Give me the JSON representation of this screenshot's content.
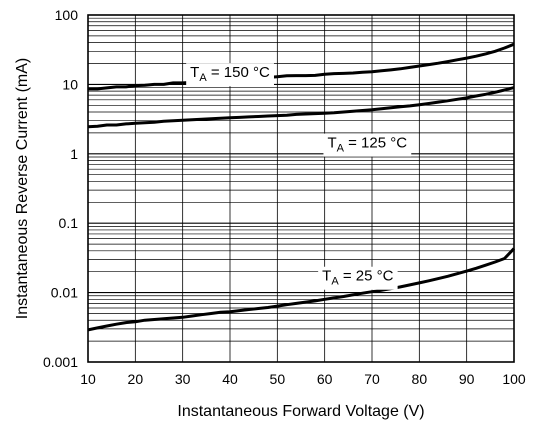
{
  "chart_data": {
    "type": "line",
    "title": "",
    "xlabel": "Instantaneous Forward Voltage (V)",
    "ylabel": "Instantaneous Reverse Current (mA)",
    "xlim": [
      10,
      100
    ],
    "ylim": [
      0.001,
      100
    ],
    "yscale": "log",
    "grid": true,
    "x_ticks": [
      10,
      20,
      30,
      40,
      50,
      60,
      70,
      80,
      90,
      100
    ],
    "x_tick_labels": [
      "10",
      "20",
      "30",
      "40",
      "50",
      "60",
      "70",
      "80",
      "90",
      "100"
    ],
    "y_ticks": [
      0.001,
      0.01,
      0.1,
      1,
      10,
      100
    ],
    "y_tick_labels": [
      "0.001",
      "0.01",
      "0.1",
      "1",
      "10",
      "100"
    ],
    "series": [
      {
        "name": "TA = 150 °C",
        "label_main": "T",
        "label_sub": "A",
        "label_rest": " = 150 °C",
        "x": [
          10,
          12,
          14,
          16,
          18,
          20,
          22,
          24,
          26,
          28,
          30,
          32,
          34,
          36,
          38,
          40,
          42,
          44,
          46,
          48,
          50,
          52,
          54,
          56,
          58,
          60,
          62,
          64,
          66,
          68,
          70,
          72,
          74,
          76,
          78,
          80,
          82,
          84,
          86,
          88,
          90,
          92,
          94,
          96,
          98,
          100
        ],
        "y": [
          8.6,
          8.6,
          8.9,
          9.2,
          9.2,
          9.6,
          9.7,
          10.0,
          10.0,
          10.5,
          10.5,
          10.7,
          10.9,
          11.1,
          11.4,
          11.6,
          11.8,
          12.1,
          12.3,
          12.6,
          12.9,
          13.3,
          13.4,
          13.4,
          13.5,
          14.0,
          14.3,
          14.4,
          14.6,
          15.0,
          15.2,
          15.7,
          16.2,
          16.8,
          17.6,
          18.4,
          19.3,
          20.2,
          21.3,
          22.6,
          23.9,
          25.5,
          27.5,
          30.0,
          33.5,
          38.0
        ]
      },
      {
        "name": "TA = 125 °C",
        "label_main": "T",
        "label_sub": "A",
        "label_rest": " = 125 °C",
        "x": [
          10,
          12,
          14,
          16,
          18,
          20,
          22,
          24,
          26,
          28,
          30,
          32,
          34,
          36,
          38,
          40,
          42,
          44,
          46,
          48,
          50,
          52,
          54,
          56,
          58,
          60,
          62,
          64,
          66,
          68,
          70,
          72,
          74,
          76,
          78,
          80,
          82,
          84,
          86,
          88,
          90,
          92,
          94,
          96,
          98,
          100
        ],
        "y": [
          2.45,
          2.5,
          2.6,
          2.6,
          2.7,
          2.75,
          2.8,
          2.85,
          2.95,
          3.0,
          3.05,
          3.1,
          3.15,
          3.2,
          3.25,
          3.3,
          3.35,
          3.4,
          3.45,
          3.5,
          3.55,
          3.6,
          3.7,
          3.75,
          3.8,
          3.85,
          3.9,
          4.0,
          4.1,
          4.2,
          4.3,
          4.45,
          4.6,
          4.75,
          4.9,
          5.1,
          5.3,
          5.55,
          5.8,
          6.1,
          6.4,
          6.8,
          7.2,
          7.7,
          8.3,
          9.0
        ]
      },
      {
        "name": "TA = 25 °C",
        "label_main": "T",
        "label_sub": "A",
        "label_rest": " = 25 °C",
        "x": [
          10,
          12,
          14,
          16,
          18,
          20,
          22,
          24,
          26,
          28,
          30,
          32,
          34,
          36,
          38,
          40,
          42,
          44,
          46,
          48,
          50,
          52,
          54,
          56,
          58,
          60,
          62,
          64,
          66,
          68,
          70,
          72,
          74,
          76,
          78,
          80,
          82,
          84,
          86,
          88,
          90,
          92,
          94,
          96,
          98,
          100
        ],
        "y": [
          0.0029,
          0.0031,
          0.0033,
          0.0035,
          0.0037,
          0.0038,
          0.004,
          0.0041,
          0.0042,
          0.0043,
          0.0044,
          0.0046,
          0.0048,
          0.005,
          0.0052,
          0.0053,
          0.0055,
          0.0057,
          0.0059,
          0.0061,
          0.0064,
          0.0067,
          0.007,
          0.0073,
          0.0076,
          0.008,
          0.0084,
          0.0088,
          0.0093,
          0.0098,
          0.0103,
          0.0108,
          0.0114,
          0.0121,
          0.0129,
          0.0138,
          0.0148,
          0.0159,
          0.0172,
          0.0187,
          0.0204,
          0.0224,
          0.0248,
          0.0276,
          0.031,
          0.043
        ]
      }
    ],
    "curve_labels": [
      {
        "series": 0,
        "at_x": 40,
        "at_y": 15
      },
      {
        "series": 1,
        "at_x": 69,
        "at_y": 1.45
      },
      {
        "series": 2,
        "at_x": 67,
        "at_y": 0.0175
      }
    ]
  }
}
